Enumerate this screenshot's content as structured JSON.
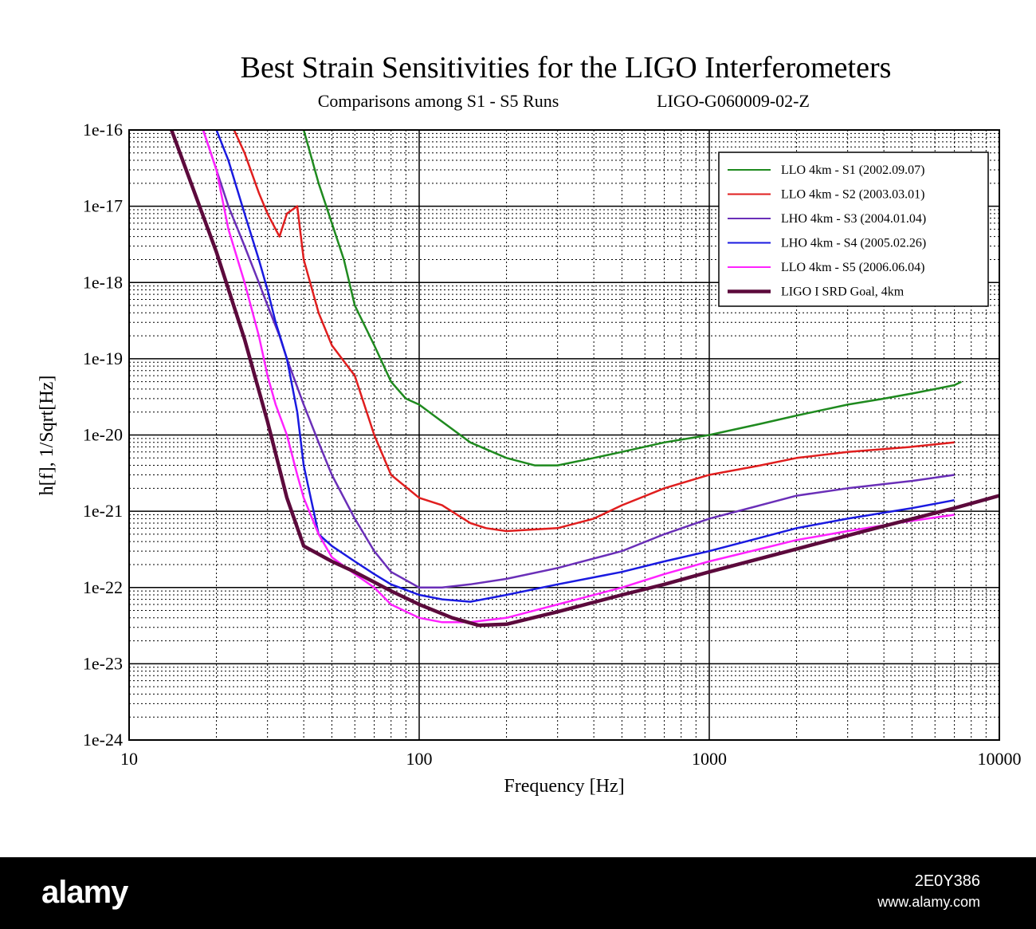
{
  "chart_data": {
    "type": "line",
    "title": "Best Strain Sensitivities for the LIGO Interferometers",
    "subtitle_left": "Comparisons among S1 - S5 Runs",
    "subtitle_right": "LIGO-G060009-02-Z",
    "xlabel": "Frequency [Hz]",
    "ylabel": "h[f], 1/Sqrt[Hz]",
    "xscale": "log",
    "yscale": "log",
    "xlim": [
      10,
      10000
    ],
    "ylim": [
      1e-24,
      1e-16
    ],
    "xticks": [
      {
        "value": 10,
        "label": "10"
      },
      {
        "value": 100,
        "label": "100"
      },
      {
        "value": 1000,
        "label": "1000"
      },
      {
        "value": 10000,
        "label": "10000"
      }
    ],
    "yticks": [
      {
        "value": 1e-16,
        "label": "1e-16"
      },
      {
        "value": 1e-17,
        "label": "1e-17"
      },
      {
        "value": 1e-18,
        "label": "1e-18"
      },
      {
        "value": 1e-19,
        "label": "1e-19"
      },
      {
        "value": 1e-20,
        "label": "1e-20"
      },
      {
        "value": 1e-21,
        "label": "1e-21"
      },
      {
        "value": 1e-22,
        "label": "1e-22"
      },
      {
        "value": 1e-23,
        "label": "1e-23"
      },
      {
        "value": 1e-24,
        "label": "1e-24"
      }
    ],
    "grid": true,
    "legend_position": "top-right",
    "series": [
      {
        "name": "LLO 4km - S1 (2002.09.07)",
        "color": "#1f8a1f",
        "x": [
          40,
          45,
          50,
          55,
          60,
          70,
          80,
          90,
          100,
          120,
          150,
          200,
          250,
          300,
          400,
          500,
          700,
          1000,
          1500,
          2000,
          3000,
          4000,
          5000,
          6000,
          7000,
          7400
        ],
        "y": [
          1e-16,
          2e-17,
          6e-18,
          2e-18,
          5e-19,
          1.5e-19,
          5e-20,
          3e-20,
          2.5e-20,
          1.5e-20,
          8e-21,
          5e-21,
          4e-21,
          4e-21,
          5e-21,
          6e-21,
          8e-21,
          1e-20,
          1.4e-20,
          1.8e-20,
          2.5e-20,
          3e-20,
          3.5e-20,
          4e-20,
          4.5e-20,
          5e-20
        ]
      },
      {
        "name": "LLO 4km - S2 (2003.03.01)",
        "color": "#e01e1e",
        "x": [
          23,
          25,
          28,
          30,
          33,
          35,
          38,
          40,
          45,
          50,
          60,
          70,
          80,
          100,
          120,
          150,
          170,
          200,
          300,
          400,
          500,
          700,
          1000,
          1500,
          2000,
          3000,
          5000,
          7000
        ],
        "y": [
          1e-16,
          5e-17,
          1.5e-17,
          8e-18,
          4e-18,
          8e-18,
          1e-17,
          2e-18,
          4e-19,
          1.5e-19,
          6e-20,
          1e-20,
          3e-21,
          1.5e-21,
          1.2e-21,
          7e-22,
          6e-22,
          5.5e-22,
          6e-22,
          8e-22,
          1.2e-21,
          2e-21,
          3e-21,
          4e-21,
          5e-21,
          6e-21,
          7e-21,
          8e-21
        ]
      },
      {
        "name": "LHO 4km - S3 (2004.01.04)",
        "color": "#6a2fb8",
        "x": [
          18,
          20,
          22,
          25,
          28,
          30,
          33,
          35,
          40,
          45,
          50,
          60,
          70,
          80,
          100,
          120,
          150,
          200,
          300,
          500,
          700,
          1000,
          1500,
          2000,
          3000,
          5000,
          7000
        ],
        "y": [
          1e-16,
          3e-17,
          1e-17,
          3e-18,
          1e-18,
          5e-19,
          2e-19,
          1e-19,
          2.5e-20,
          8e-21,
          3e-21,
          8e-22,
          3e-22,
          1.6e-22,
          1e-22,
          1e-22,
          1.1e-22,
          1.3e-22,
          1.8e-22,
          3e-22,
          5e-22,
          8e-22,
          1.2e-21,
          1.6e-21,
          2e-21,
          2.5e-21,
          3e-21
        ]
      },
      {
        "name": "LHO 4km - S4 (2005.02.26)",
        "color": "#1a1ae0",
        "x": [
          20,
          22,
          25,
          28,
          30,
          32,
          35,
          38,
          40,
          45,
          50,
          60,
          70,
          80,
          100,
          120,
          150,
          200,
          300,
          500,
          700,
          1000,
          1500,
          2000,
          3000,
          5000,
          7000
        ],
        "y": [
          1e-16,
          4e-17,
          8e-18,
          2e-18,
          8e-19,
          3e-19,
          1e-19,
          2e-20,
          4e-21,
          5e-22,
          3.5e-22,
          2.2e-22,
          1.5e-22,
          1.1e-22,
          8e-23,
          7e-23,
          6.5e-23,
          8e-23,
          1.1e-22,
          1.6e-22,
          2.2e-22,
          3e-22,
          4.5e-22,
          6e-22,
          8e-22,
          1.1e-21,
          1.4e-21
        ]
      },
      {
        "name": "LLO 4km - S5 (2006.06.04)",
        "color": "#ff22ff",
        "x": [
          18,
          20,
          22,
          25,
          28,
          30,
          32,
          35,
          38,
          40,
          45,
          50,
          60,
          70,
          80,
          100,
          120,
          150,
          200,
          300,
          500,
          700,
          1000,
          1500,
          2000,
          3000,
          5000,
          7000
        ],
        "y": [
          1e-16,
          3e-17,
          5e-18,
          1e-18,
          2e-19,
          6e-20,
          2.5e-20,
          1e-20,
          3e-21,
          1.5e-21,
          5e-22,
          2.5e-22,
          1.5e-22,
          1e-22,
          6e-23,
          4e-23,
          3.5e-23,
          3.5e-23,
          4e-23,
          6e-23,
          1e-22,
          1.5e-22,
          2.2e-22,
          3.2e-22,
          4.2e-22,
          5.5e-22,
          7.5e-22,
          9e-22
        ]
      },
      {
        "name": "LIGO I SRD Goal, 4km",
        "color": "#5c0a3c",
        "x": [
          14,
          20,
          25,
          30,
          35,
          40,
          50,
          60,
          80,
          100,
          130,
          160,
          200,
          300,
          500,
          700,
          1000,
          2000,
          4000,
          7000,
          10000
        ],
        "y": [
          1e-16,
          2.5e-18,
          1.8e-19,
          1.5e-20,
          1.5e-21,
          3.5e-22,
          2.2e-22,
          1.6e-22,
          9e-23,
          6e-23,
          4e-23,
          3.2e-23,
          3.3e-23,
          4.8e-23,
          8e-23,
          1.1e-22,
          1.6e-22,
          3.2e-22,
          6.4e-22,
          1.1e-21,
          1.6e-21
        ]
      }
    ]
  },
  "footer": {
    "logo": "alamy",
    "image_id": "2E0Y386",
    "site": "www.alamy.com"
  }
}
